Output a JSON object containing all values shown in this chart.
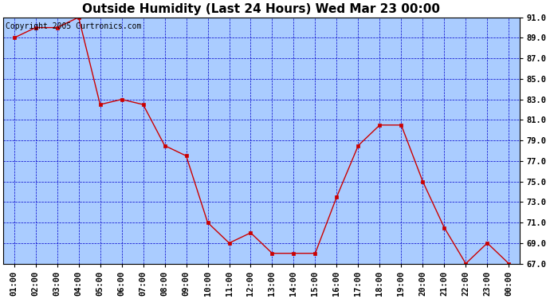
{
  "title": "Outside Humidity (Last 24 Hours) Wed Mar 23 00:00",
  "copyright": "Copyright 2005 Curtronics.com",
  "x_labels": [
    "01:00",
    "02:00",
    "03:00",
    "04:00",
    "05:00",
    "06:00",
    "07:00",
    "08:00",
    "09:00",
    "10:00",
    "11:00",
    "12:00",
    "13:00",
    "14:00",
    "15:00",
    "16:00",
    "17:00",
    "18:00",
    "19:00",
    "20:00",
    "21:00",
    "22:00",
    "23:00",
    "00:00"
  ],
  "y_values": [
    89.0,
    90.0,
    90.0,
    91.0,
    82.5,
    83.0,
    82.5,
    78.5,
    77.5,
    71.0,
    69.0,
    70.0,
    68.0,
    68.0,
    68.0,
    73.5,
    78.5,
    80.5,
    80.5,
    75.0,
    70.5,
    67.0,
    69.0,
    67.0
  ],
  "line_color": "#cc0000",
  "marker_color": "#cc0000",
  "fig_bg_color": "#ffffff",
  "plot_bg_color": "#aaccff",
  "grid_color": "#0000cc",
  "title_color": "#000000",
  "border_color": "#000000",
  "ylim_min": 67.0,
  "ylim_max": 91.0,
  "ytick_step": 2.0,
  "title_fontsize": 11,
  "copyright_fontsize": 7,
  "tick_fontsize": 7.5,
  "figwidth": 6.9,
  "figheight": 3.75,
  "dpi": 100
}
